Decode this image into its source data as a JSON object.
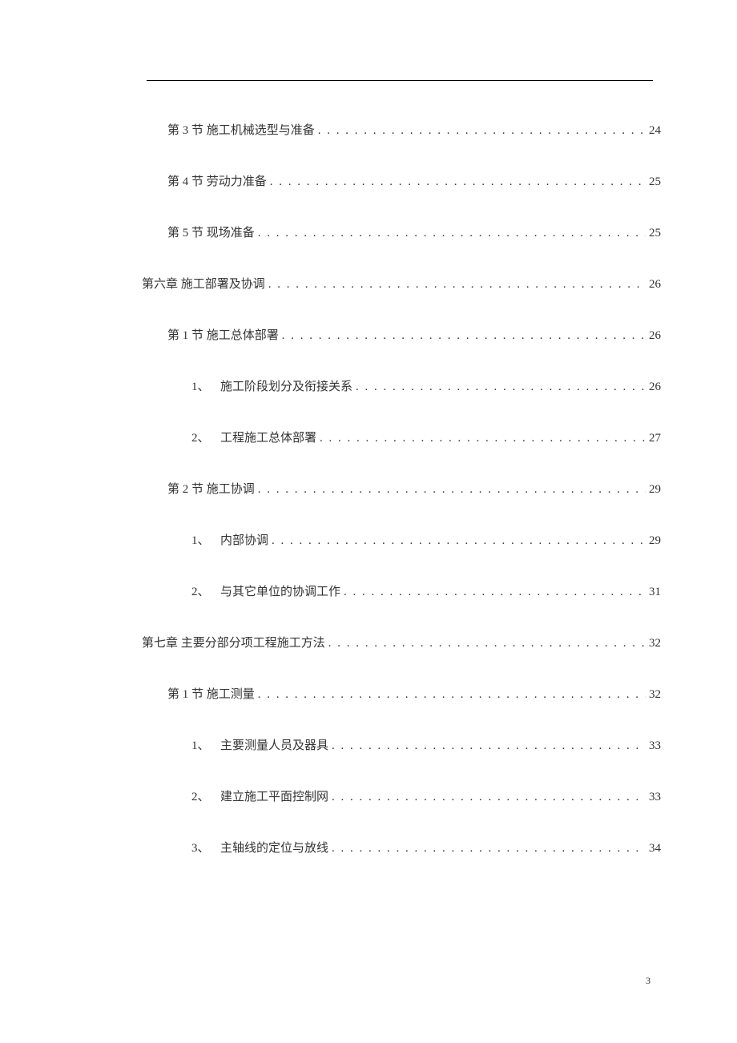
{
  "entries": [
    {
      "level": 2,
      "label": "第 3 节  施工机械选型与准备",
      "page": "24"
    },
    {
      "level": 2,
      "label": "第 4 节  劳动力准备",
      "page": "25"
    },
    {
      "level": 2,
      "label": "第 5 节  现场准备",
      "page": "25"
    },
    {
      "level": 1,
      "label": "第六章  施工部署及协调",
      "page": "26"
    },
    {
      "level": 2,
      "label": "第 1 节  施工总体部署",
      "page": "26"
    },
    {
      "level": 3,
      "num": "1、",
      "label": "施工阶段划分及衔接关系",
      "page": "26"
    },
    {
      "level": 3,
      "num": "2、",
      "label": "工程施工总体部署",
      "page": "27"
    },
    {
      "level": 2,
      "label": "第 2 节  施工协调",
      "page": "29"
    },
    {
      "level": 3,
      "num": "1、",
      "label": "内部协调",
      "page": "29"
    },
    {
      "level": 3,
      "num": "2、",
      "label": "与其它单位的协调工作",
      "page": "31"
    },
    {
      "level": 1,
      "label": "第七章  主要分部分项工程施工方法",
      "page": "32"
    },
    {
      "level": 2,
      "label": "第 1 节  施工测量",
      "page": "32"
    },
    {
      "level": 3,
      "num": "1、",
      "label": "主要测量人员及器具",
      "page": "33"
    },
    {
      "level": 3,
      "num": "2、",
      "label": "建立施工平面控制网",
      "page": "33"
    },
    {
      "level": 3,
      "num": "3、",
      "label": "主轴线的定位与放线",
      "page": "34"
    }
  ],
  "pageNumber": "3"
}
